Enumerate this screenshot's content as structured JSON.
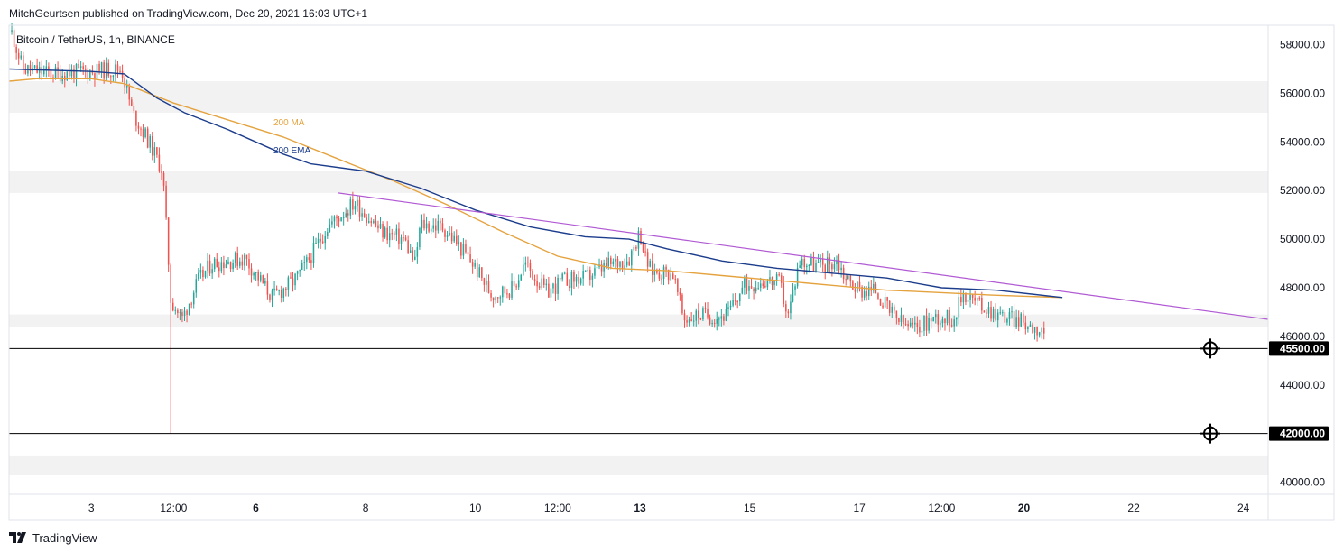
{
  "header": {
    "publisher_line": "MitchGeurtsen published on TradingView.com, Dec 20, 2021 16:03 UTC+1"
  },
  "footer": {
    "brand": "TradingView",
    "logo_icon": "tradingview-logo-icon"
  },
  "colors": {
    "up": "#26a69a",
    "down": "#ef5350",
    "ma": "#e5a33f",
    "ema": "#1c3d8c",
    "trend": "#b15ad4",
    "band": "#f2f2f2",
    "level": "#000000"
  },
  "chart_data": {
    "type": "candlestick",
    "symbol": "Bitcoin / TetherUS, 1h, BINANCE",
    "interval": "1h",
    "ylim": [
      39500,
      58800
    ],
    "y_ticks": [
      "58000.00",
      "56000.00",
      "54000.00",
      "52000.00",
      "50000.00",
      "48000.00",
      "46000.00",
      "44000.00",
      "40000.00"
    ],
    "x_ticks": [
      {
        "label": "3",
        "day": 3.0,
        "bold": false
      },
      {
        "label": "12:00",
        "day": 4.5,
        "bold": false
      },
      {
        "label": "6",
        "day": 6.0,
        "bold": true
      },
      {
        "label": "8",
        "day": 8.0,
        "bold": false
      },
      {
        "label": "10",
        "day": 10.0,
        "bold": false
      },
      {
        "label": "12:00",
        "day": 11.5,
        "bold": false
      },
      {
        "label": "13",
        "day": 13.0,
        "bold": true
      },
      {
        "label": "15",
        "day": 15.0,
        "bold": false
      },
      {
        "label": "17",
        "day": 17.0,
        "bold": false
      },
      {
        "label": "12:00",
        "day": 18.5,
        "bold": false
      },
      {
        "label": "20",
        "day": 20.0,
        "bold": true
      },
      {
        "label": "22",
        "day": 22.0,
        "bold": false
      },
      {
        "label": "24",
        "day": 24.0,
        "bold": false
      }
    ],
    "x_range": [
      1.5,
      24.45
    ],
    "price_levels": [
      {
        "label": "45500.00",
        "value": 45500
      },
      {
        "label": "42000.00",
        "value": 42000
      }
    ],
    "zones": [
      [
        55200,
        56500
      ],
      [
        51900,
        52800
      ],
      [
        46400,
        46900
      ],
      [
        40300,
        41100
      ]
    ],
    "series": [
      {
        "name": "200 MA",
        "points": [
          [
            1.5,
            56500
          ],
          [
            2.0,
            56600
          ],
          [
            3.0,
            56600
          ],
          [
            3.6,
            56400
          ],
          [
            4.5,
            55600
          ],
          [
            5.5,
            54900
          ],
          [
            6.5,
            54200
          ],
          [
            7.5,
            53300
          ],
          [
            8.5,
            52400
          ],
          [
            9.5,
            51400
          ],
          [
            10.5,
            50300
          ],
          [
            11.5,
            49300
          ],
          [
            12.5,
            48800
          ],
          [
            13.5,
            48700
          ],
          [
            14.5,
            48500
          ],
          [
            15.5,
            48300
          ],
          [
            16.5,
            48100
          ],
          [
            17.5,
            47900
          ],
          [
            18.5,
            47800
          ],
          [
            19.4,
            47700
          ],
          [
            20.7,
            47600
          ]
        ]
      },
      {
        "name": "200 EMA",
        "points": [
          [
            1.5,
            57000
          ],
          [
            3.0,
            56900
          ],
          [
            3.6,
            56800
          ],
          [
            4.2,
            55800
          ],
          [
            4.7,
            55200
          ],
          [
            5.5,
            54500
          ],
          [
            6.5,
            53500
          ],
          [
            7.0,
            53100
          ],
          [
            8.0,
            52800
          ],
          [
            9.0,
            52100
          ],
          [
            10.0,
            51200
          ],
          [
            11.0,
            50500
          ],
          [
            12.0,
            50100
          ],
          [
            12.8,
            50000
          ],
          [
            13.5,
            49600
          ],
          [
            14.5,
            49100
          ],
          [
            15.5,
            48800
          ],
          [
            16.5,
            48600
          ],
          [
            17.5,
            48400
          ],
          [
            18.5,
            48000
          ],
          [
            19.5,
            47900
          ],
          [
            20.7,
            47600
          ]
        ]
      }
    ],
    "trendline": [
      [
        7.5,
        51900
      ],
      [
        24.45,
        46700
      ]
    ],
    "candles_gen": {
      "anchors": [
        [
          1.55,
          58500
        ],
        [
          1.75,
          57000
        ],
        [
          2.3,
          56800
        ],
        [
          3.0,
          56900
        ],
        [
          3.55,
          57000
        ],
        [
          3.75,
          55200
        ],
        [
          4.05,
          54000
        ],
        [
          4.3,
          52800
        ],
        [
          4.38,
          50000
        ],
        [
          4.45,
          47500
        ],
        [
          4.65,
          46700
        ],
        [
          4.95,
          48300
        ],
        [
          5.2,
          49000
        ],
        [
          5.8,
          49200
        ],
        [
          6.3,
          47600
        ],
        [
          6.7,
          48300
        ],
        [
          6.9,
          48900
        ],
        [
          7.3,
          50500
        ],
        [
          7.8,
          51500
        ],
        [
          8.3,
          50300
        ],
        [
          8.7,
          50000
        ],
        [
          8.9,
          49000
        ],
        [
          9.0,
          50600
        ],
        [
          9.4,
          50500
        ],
        [
          9.6,
          50000
        ],
        [
          9.95,
          49000
        ],
        [
          10.3,
          47700
        ],
        [
          10.7,
          48000
        ],
        [
          10.9,
          49000
        ],
        [
          11.3,
          47800
        ],
        [
          11.6,
          48300
        ],
        [
          12.0,
          48400
        ],
        [
          12.4,
          48900
        ],
        [
          12.8,
          49200
        ],
        [
          13.0,
          50300
        ],
        [
          13.1,
          49200
        ],
        [
          13.2,
          48700
        ],
        [
          13.6,
          48600
        ],
        [
          13.8,
          46700
        ],
        [
          14.1,
          46900
        ],
        [
          14.4,
          46800
        ],
        [
          14.6,
          46900
        ],
        [
          14.9,
          48100
        ],
        [
          15.3,
          48300
        ],
        [
          15.55,
          48200
        ],
        [
          15.7,
          46800
        ],
        [
          15.9,
          49100
        ],
        [
          16.3,
          48900
        ],
        [
          16.6,
          49100
        ],
        [
          16.75,
          48400
        ],
        [
          17.0,
          47900
        ],
        [
          17.3,
          47900
        ],
        [
          17.55,
          47000
        ],
        [
          17.8,
          46500
        ],
        [
          18.0,
          46300
        ],
        [
          18.4,
          46800
        ],
        [
          18.7,
          46700
        ],
        [
          18.9,
          47800
        ],
        [
          19.2,
          47300
        ],
        [
          19.55,
          46900
        ],
        [
          19.85,
          46700
        ],
        [
          20.4,
          46200
        ]
      ],
      "extremes": [
        {
          "day": 4.45,
          "low": 42000
        },
        {
          "day": 4.35,
          "high": 51500
        }
      ],
      "step": 0.042,
      "seed": 11
    }
  }
}
